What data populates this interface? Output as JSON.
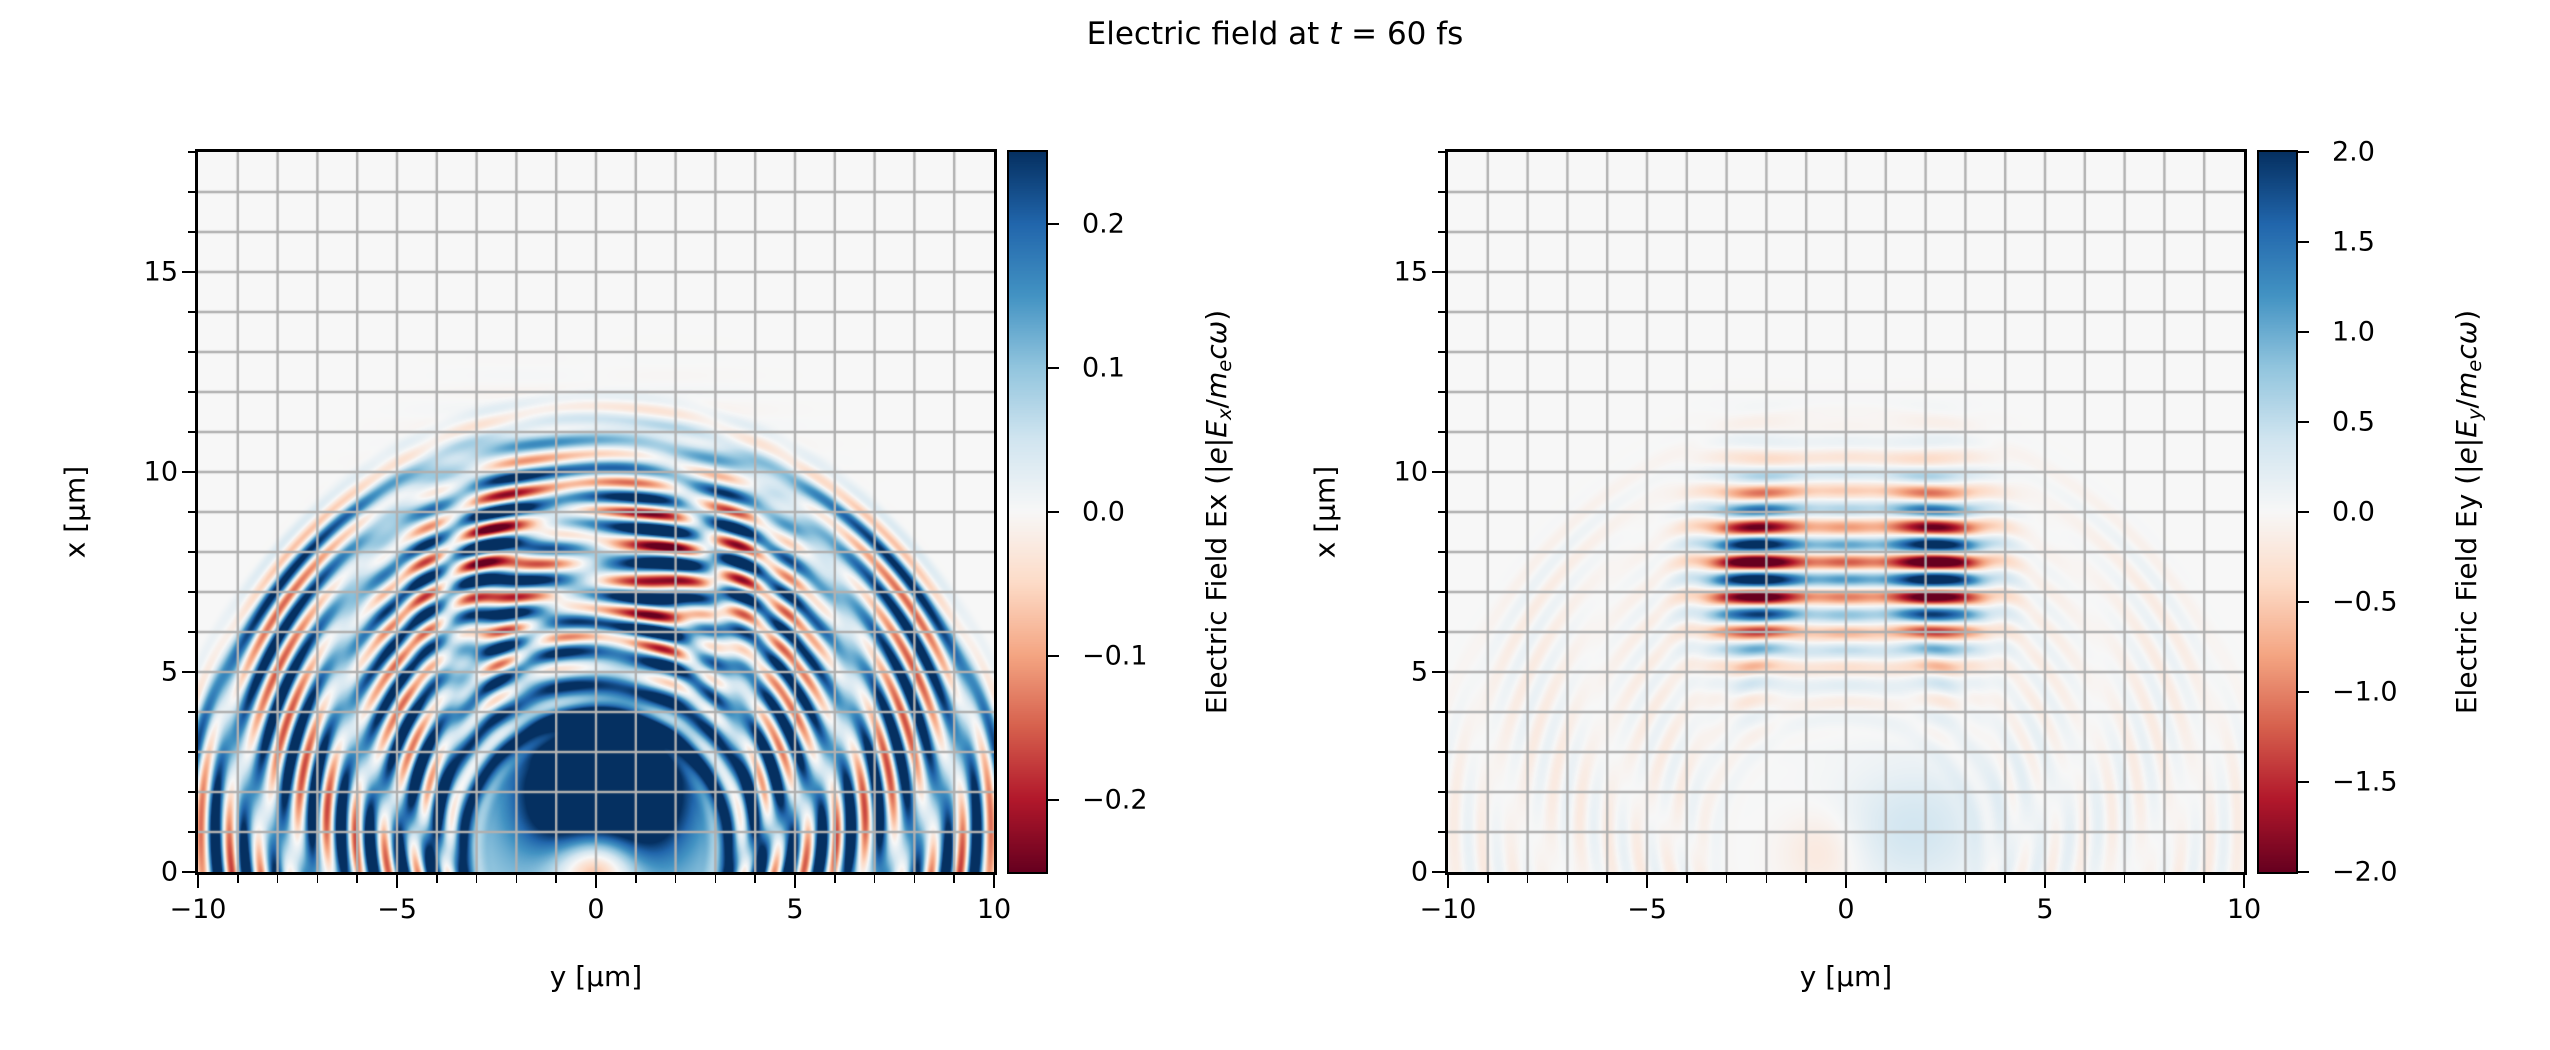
{
  "figure": {
    "title_plain": "Electric field at t = 60 fs",
    "title_parts": [
      {
        "t": "Electric field at "
      },
      {
        "t": "t",
        "i": 1
      },
      {
        "t": " = 60 fs"
      }
    ],
    "background": "#ffffff",
    "size": [
      2550,
      1050
    ]
  },
  "style": {
    "colormap_name": "RdBu",
    "colormap_stops": [
      "#67001f",
      "#b2182b",
      "#d6604d",
      "#f4a582",
      "#fddbc7",
      "#f7f7f7",
      "#d1e5f0",
      "#92c5de",
      "#4393c3",
      "#2166ac",
      "#053061"
    ],
    "axes_background": "#f7f7f7",
    "grid_color": "#b0b0b0",
    "grid_linewidth": 2.4,
    "spine_color": "#000000",
    "text_color": "#000000"
  },
  "chart_data": [
    {
      "type": "heatmap",
      "name": "Ex-panel",
      "description": "2D map of normalized electric field component Ex from a laser-plasma simulation: expanding semicircular wave rings centered near the bottom axis origin, a saturated blue plasma region at bottom center, and an odd-in-y striped laser pulse around x=7.5 um.",
      "xlabel": "y [μm]",
      "ylabel": "x [μm]",
      "xlim": [
        -10,
        10
      ],
      "ylim": [
        0,
        18
      ],
      "xticks": [
        -10,
        -5,
        0,
        5,
        10
      ],
      "xtick_labels": [
        "−10",
        "−5",
        "0",
        "5",
        "10"
      ],
      "yticks": [
        0,
        5,
        10,
        15
      ],
      "ytick_labels": [
        "0",
        "5",
        "10",
        "15"
      ],
      "minor_tick_step": 1,
      "grid": true,
      "colorbar": {
        "clim": [
          -0.25,
          0.25
        ],
        "tick_values": [
          0.2,
          0.1,
          0.0,
          -0.1,
          -0.2
        ],
        "tick_labels": [
          "0.2",
          "0.1",
          "0.0",
          "−0.1",
          "−0.2"
        ],
        "label_plain": "Electric Field Ex (|e|Ex/mecω)",
        "label_parts": [
          {
            "t": "Electric Field Ex (|"
          },
          {
            "t": "e",
            "i": 1
          },
          {
            "t": "|"
          },
          {
            "t": "E",
            "i": 1
          },
          {
            "t": "x",
            "i": 1,
            "sub": 1
          },
          {
            "t": "/"
          },
          {
            "t": "m",
            "i": 1
          },
          {
            "t": "e",
            "i": 1,
            "sub": 1
          },
          {
            "t": "c",
            "i": 1
          },
          {
            "t": "ω",
            "i": 1
          },
          {
            "t": ")"
          }
        ]
      },
      "field_model": {
        "components": [
          {
            "type": "ring",
            "cu": 0,
            "cv": 0.6,
            "wavelength": 0.78,
            "phase": 0.0,
            "amp": 0.17,
            "bias": 0.45,
            "rmin": 2.6,
            "rmax": 11.2,
            "fade": 1.0,
            "top_atten": 0.45
          },
          {
            "type": "ring",
            "cu": 0,
            "cv": 1.7,
            "wavelength": 0.64,
            "phase": 1.3,
            "amp": 0.1,
            "bias": 0.2,
            "rmin": 3.2,
            "rmax": 10.6,
            "fade": 1.2,
            "top_atten": 0.3
          },
          {
            "type": "stripes",
            "v0": 7.5,
            "wavelength": 0.86,
            "phase": 0.0,
            "amp": 0.42,
            "sigma_v": 2.3,
            "y_mode": "odd",
            "y_a": 1.7,
            "y_b": 2.6
          },
          {
            "type": "disk",
            "cu": 0.2,
            "cv": 2.0,
            "radius": 1.9,
            "edge": 0.45,
            "amp": 0.34
          },
          {
            "type": "disk",
            "cu": 0.0,
            "cv": 0.8,
            "radius": 4.3,
            "edge": 0.7,
            "amp": 0.1
          },
          {
            "type": "gauss",
            "cu": 0.0,
            "cv": 0.2,
            "su": 1.1,
            "sv": 0.9,
            "amp": -0.33
          }
        ]
      }
    },
    {
      "type": "heatmap",
      "name": "Ey-panel",
      "description": "2D map of normalized electric field component Ey: strong even-in-y striped laser pulse split into two lobes around y=±2.2 um at x≈5-11 um, with faint expanding rings and weak tint patches near the bottom axis.",
      "xlabel": "y [μm]",
      "ylabel": "x [μm]",
      "xlim": [
        -10,
        10
      ],
      "ylim": [
        0,
        18
      ],
      "xticks": [
        -10,
        -5,
        0,
        5,
        10
      ],
      "xtick_labels": [
        "−10",
        "−5",
        "0",
        "5",
        "10"
      ],
      "yticks": [
        0,
        5,
        10,
        15
      ],
      "ytick_labels": [
        "0",
        "5",
        "10",
        "15"
      ],
      "minor_tick_step": 1,
      "grid": true,
      "colorbar": {
        "clim": [
          -2.0,
          2.0
        ],
        "tick_values": [
          2.0,
          1.5,
          1.0,
          0.5,
          0.0,
          -0.5,
          -1.0,
          -1.5,
          -2.0
        ],
        "tick_labels": [
          "2.0",
          "1.5",
          "1.0",
          "0.5",
          "0.0",
          "−0.5",
          "−1.0",
          "−1.5",
          "−2.0"
        ],
        "label_plain": "Electric Field Ey (|e|Ey/mecω)",
        "label_parts": [
          {
            "t": "Electric Field Ey (|"
          },
          {
            "t": "e",
            "i": 1
          },
          {
            "t": "|"
          },
          {
            "t": "E",
            "i": 1
          },
          {
            "t": "y",
            "i": 1,
            "sub": 1
          },
          {
            "t": "/"
          },
          {
            "t": "m",
            "i": 1
          },
          {
            "t": "e",
            "i": 1,
            "sub": 1
          },
          {
            "t": "c",
            "i": 1
          },
          {
            "t": "ω",
            "i": 1
          },
          {
            "t": ")"
          }
        ]
      },
      "field_model": {
        "components": [
          {
            "type": "ring",
            "cu": 0,
            "cv": 0.6,
            "wavelength": 0.78,
            "phase": 0.6,
            "amp": 0.1,
            "bias": 0.0,
            "rmin": 2.6,
            "rmax": 11.2,
            "fade": 1.0,
            "top_atten": 0.3
          },
          {
            "type": "ring",
            "cu": 0,
            "cv": 1.7,
            "wavelength": 0.64,
            "phase": 2.0,
            "amp": 0.07,
            "bias": -0.3,
            "rmin": 3.2,
            "rmax": 10.6,
            "fade": 1.2,
            "top_atten": 0.3
          },
          {
            "type": "stripes",
            "v0": 7.55,
            "wavelength": 0.88,
            "phase": 3.3,
            "amp": 2.6,
            "sigma_v": 2.0,
            "y_mode": "lobes",
            "lobe_center": 2.2,
            "lobe_sigma": 1.25,
            "axial_amp": 0.42,
            "axial_sigma": 0.75
          },
          {
            "type": "gauss",
            "cu": 1.6,
            "cv": 1.0,
            "su": 1.6,
            "sv": 1.4,
            "amp": 0.3
          },
          {
            "type": "gauss",
            "cu": -0.6,
            "cv": 0.5,
            "su": 1.0,
            "sv": 1.0,
            "amp": -0.25
          },
          {
            "type": "gauss",
            "cu": 3.0,
            "cv": 1.5,
            "su": 3.5,
            "sv": 2.2,
            "amp": 0.1
          }
        ]
      }
    }
  ]
}
